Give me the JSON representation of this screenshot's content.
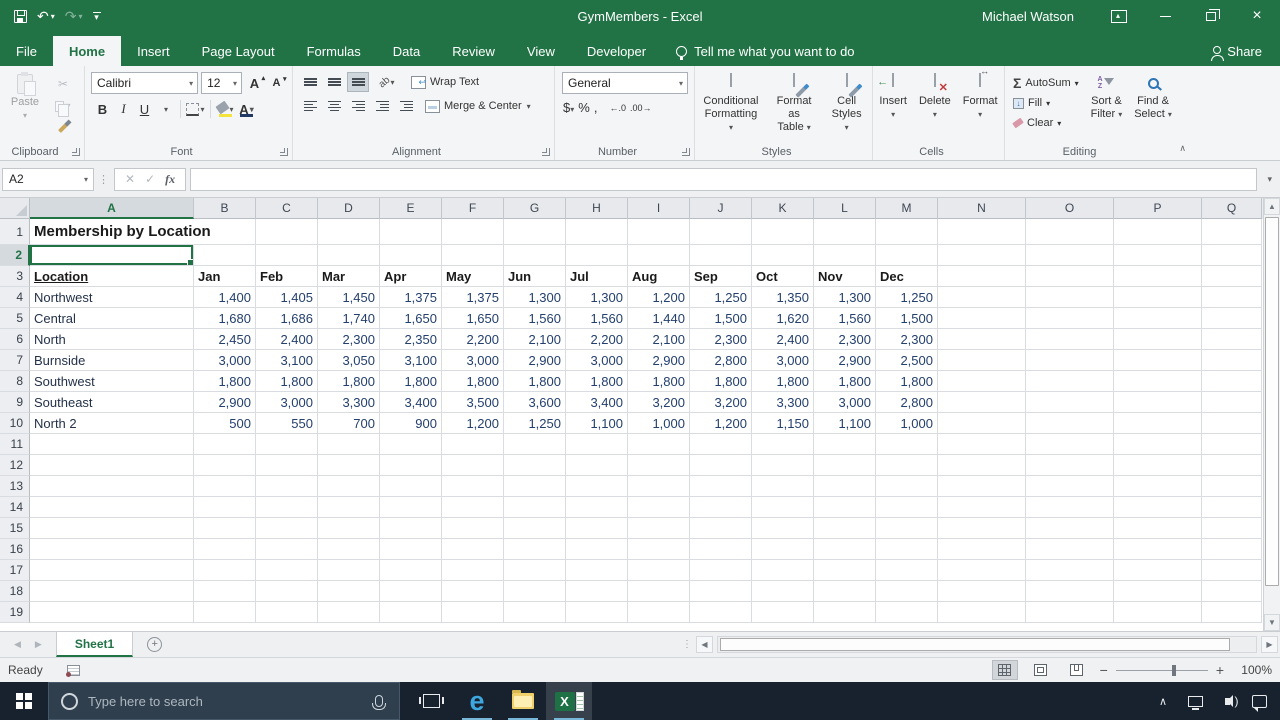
{
  "titlebar": {
    "title": "GymMembers  -  Excel",
    "user": "Michael Watson",
    "qat_icons": [
      "save-icon",
      "undo-icon",
      "redo-icon",
      "customize-quick-access-icon"
    ],
    "window_icons": [
      "ribbon-display-options-icon",
      "minimize-icon",
      "restore-icon",
      "close-icon"
    ]
  },
  "ribbon_tabs": {
    "items": [
      {
        "label": "File",
        "active": false
      },
      {
        "label": "Home",
        "active": true
      },
      {
        "label": "Insert",
        "active": false
      },
      {
        "label": "Page Layout",
        "active": false
      },
      {
        "label": "Formulas",
        "active": false
      },
      {
        "label": "Data",
        "active": false
      },
      {
        "label": "Review",
        "active": false
      },
      {
        "label": "View",
        "active": false
      },
      {
        "label": "Developer",
        "active": false
      }
    ],
    "tell_me": "Tell me what you want to do",
    "share": "Share"
  },
  "ribbon": {
    "clipboard": {
      "label": "Clipboard",
      "paste": "Paste"
    },
    "font": {
      "label": "Font",
      "font_name": "Calibri",
      "font_size": "12",
      "bold": "B",
      "italic": "I",
      "underline": "U"
    },
    "alignment": {
      "label": "Alignment",
      "wrap_text": "Wrap Text",
      "merge_center": "Merge & Center"
    },
    "number": {
      "label": "Number",
      "format": "General",
      "currency": "$",
      "percent": "%",
      "comma": ",",
      "inc_decimal": "←.0",
      "dec_decimal": ".00→"
    },
    "styles": {
      "label": "Styles",
      "conditional_1": "Conditional",
      "conditional_2": "Formatting",
      "table_1": "Format as",
      "table_2": "Table",
      "cellstyles_1": "Cell",
      "cellstyles_2": "Styles"
    },
    "cells": {
      "label": "Cells",
      "insert": "Insert",
      "delete": "Delete",
      "format": "Format"
    },
    "editing": {
      "label": "Editing",
      "autosum": "AutoSum",
      "fill": "Fill",
      "clear": "Clear",
      "sort_1": "Sort &",
      "sort_2": "Filter",
      "find_1": "Find &",
      "find_2": "Select"
    }
  },
  "formula_bar": {
    "name_box": "A2",
    "formula": "",
    "fx": "fx",
    "cancel": "✕",
    "enter": "✓"
  },
  "grid": {
    "columns": [
      "A",
      "B",
      "C",
      "D",
      "E",
      "F",
      "G",
      "H",
      "I",
      "J",
      "K",
      "L",
      "M",
      "N",
      "O",
      "P",
      "Q"
    ],
    "rows_total": 19,
    "selected_cell": {
      "ref": "A2",
      "row": 2,
      "col": "A"
    },
    "title_row": {
      "row": 1,
      "col": "A",
      "text": "Membership by Location"
    },
    "header_row": {
      "row": 3,
      "labels": [
        "Location",
        "Jan",
        "Feb",
        "Mar",
        "Apr",
        "May",
        "Jun",
        "Jul",
        "Aug",
        "Sep",
        "Oct",
        "Nov",
        "Dec"
      ]
    },
    "data_rows": [
      {
        "row": 4,
        "label": "Northwest",
        "values": [
          1400,
          1405,
          1450,
          1375,
          1375,
          1300,
          1300,
          1200,
          1250,
          1350,
          1300,
          1250
        ]
      },
      {
        "row": 5,
        "label": "Central",
        "values": [
          1680,
          1686,
          1740,
          1650,
          1650,
          1560,
          1560,
          1440,
          1500,
          1620,
          1560,
          1500
        ]
      },
      {
        "row": 6,
        "label": "North",
        "values": [
          2450,
          2400,
          2300,
          2350,
          2200,
          2100,
          2200,
          2100,
          2300,
          2400,
          2300,
          2300
        ]
      },
      {
        "row": 7,
        "label": "Burnside",
        "values": [
          3000,
          3100,
          3050,
          3100,
          3000,
          2900,
          3000,
          2900,
          2800,
          3000,
          2900,
          2500
        ]
      },
      {
        "row": 8,
        "label": "Southwest",
        "values": [
          1800,
          1800,
          1800,
          1800,
          1800,
          1800,
          1800,
          1800,
          1800,
          1800,
          1800,
          1800
        ]
      },
      {
        "row": 9,
        "label": "Southeast",
        "values": [
          2900,
          3000,
          3300,
          3400,
          3500,
          3600,
          3400,
          3200,
          3200,
          3300,
          3000,
          2800
        ]
      },
      {
        "row": 10,
        "label": "North 2",
        "values": [
          500,
          550,
          700,
          900,
          1200,
          1250,
          1100,
          1000,
          1200,
          1150,
          1100,
          1000
        ]
      }
    ]
  },
  "sheet_tabs": {
    "active": "Sheet1"
  },
  "status_bar": {
    "mode": "Ready",
    "zoom": "100%"
  },
  "taskbar": {
    "search_placeholder": "Type here to search"
  },
  "colors": {
    "excel_green": "#217346",
    "selection": "#217346",
    "fill_color_swatch": "#f2e43c",
    "font_color_swatch": "#203864"
  }
}
